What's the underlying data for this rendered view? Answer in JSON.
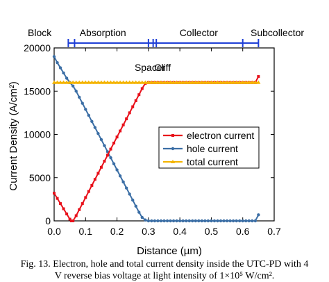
{
  "chart_data": {
    "type": "line",
    "xlabel": "Distance (µm)",
    "ylabel": "Current Density (A/cm²)",
    "xlim": [
      0.0,
      0.7
    ],
    "ylim": [
      0,
      20000
    ],
    "xticks": [
      "0.0",
      "0.1",
      "0.2",
      "0.3",
      "0.4",
      "0.5",
      "0.6",
      "0.7"
    ],
    "yticks": [
      "0",
      "5000",
      "10000",
      "15000",
      "20000"
    ],
    "grid": false,
    "legend_position": "center-right",
    "series": [
      {
        "name": "electron current",
        "color": "#e8101a",
        "marker": "square",
        "x": [
          0.0,
          0.01,
          0.02,
          0.03,
          0.04,
          0.05,
          0.055,
          0.06,
          0.07,
          0.08,
          0.09,
          0.1,
          0.11,
          0.12,
          0.13,
          0.14,
          0.15,
          0.16,
          0.17,
          0.18,
          0.19,
          0.2,
          0.21,
          0.22,
          0.23,
          0.24,
          0.25,
          0.26,
          0.27,
          0.28,
          0.29,
          0.3,
          0.31,
          0.32,
          0.33,
          0.34,
          0.35,
          0.36,
          0.37,
          0.38,
          0.39,
          0.4,
          0.41,
          0.42,
          0.43,
          0.44,
          0.45,
          0.46,
          0.47,
          0.48,
          0.49,
          0.5,
          0.51,
          0.52,
          0.53,
          0.54,
          0.55,
          0.56,
          0.57,
          0.58,
          0.59,
          0.6,
          0.61,
          0.62,
          0.63,
          0.64,
          0.65
        ],
        "y": [
          3200,
          2600,
          2000,
          1400,
          800,
          200,
          0,
          0,
          600,
          1300,
          2000,
          2700,
          3400,
          4100,
          4800,
          5500,
          6200,
          6900,
          7600,
          8300,
          9000,
          9700,
          10400,
          11100,
          11800,
          12500,
          13200,
          13900,
          14600,
          15300,
          15900,
          16000,
          16000,
          16000,
          16000,
          16000,
          16000,
          16000,
          16000,
          16000,
          16000,
          16000,
          16000,
          16000,
          16000,
          16000,
          16000,
          16000,
          16000,
          16000,
          16000,
          16000,
          16000,
          16000,
          16000,
          16000,
          16000,
          16000,
          16000,
          16000,
          16000,
          16000,
          16000,
          16000,
          16000,
          16000,
          16700
        ]
      },
      {
        "name": "hole current",
        "color": "#3b6ea5",
        "marker": "circle",
        "x": [
          0.0,
          0.01,
          0.02,
          0.03,
          0.04,
          0.05,
          0.06,
          0.07,
          0.08,
          0.09,
          0.1,
          0.11,
          0.12,
          0.13,
          0.14,
          0.15,
          0.16,
          0.17,
          0.18,
          0.19,
          0.2,
          0.21,
          0.22,
          0.23,
          0.24,
          0.25,
          0.26,
          0.27,
          0.28,
          0.29,
          0.3,
          0.31,
          0.32,
          0.33,
          0.34,
          0.35,
          0.36,
          0.37,
          0.38,
          0.39,
          0.4,
          0.41,
          0.42,
          0.43,
          0.44,
          0.45,
          0.46,
          0.47,
          0.48,
          0.49,
          0.5,
          0.51,
          0.52,
          0.53,
          0.54,
          0.55,
          0.56,
          0.57,
          0.58,
          0.59,
          0.6,
          0.61,
          0.62,
          0.63,
          0.64,
          0.65
        ],
        "y": [
          19000,
          18300,
          17700,
          17100,
          16500,
          16000,
          15600,
          15000,
          14300,
          13600,
          12900,
          12200,
          11500,
          10800,
          10100,
          9400,
          8700,
          8000,
          7300,
          6600,
          5900,
          5200,
          4500,
          3800,
          3100,
          2400,
          1700,
          1000,
          400,
          100,
          0,
          0,
          0,
          0,
          0,
          0,
          0,
          0,
          0,
          0,
          0,
          0,
          0,
          0,
          0,
          0,
          0,
          0,
          0,
          0,
          0,
          0,
          0,
          0,
          0,
          0,
          0,
          0,
          0,
          0,
          0,
          0,
          0,
          0,
          0,
          700
        ]
      },
      {
        "name": "total current",
        "color": "#f4b400",
        "marker": "triangle",
        "x": [
          0.0,
          0.01,
          0.02,
          0.03,
          0.04,
          0.05,
          0.06,
          0.07,
          0.08,
          0.09,
          0.1,
          0.11,
          0.12,
          0.13,
          0.14,
          0.15,
          0.16,
          0.17,
          0.18,
          0.19,
          0.2,
          0.21,
          0.22,
          0.23,
          0.24,
          0.25,
          0.26,
          0.27,
          0.28,
          0.29,
          0.3,
          0.31,
          0.32,
          0.33,
          0.34,
          0.35,
          0.36,
          0.37,
          0.38,
          0.39,
          0.4,
          0.41,
          0.42,
          0.43,
          0.44,
          0.45,
          0.46,
          0.47,
          0.48,
          0.49,
          0.5,
          0.51,
          0.52,
          0.53,
          0.54,
          0.55,
          0.56,
          0.57,
          0.58,
          0.59,
          0.6,
          0.61,
          0.62,
          0.63,
          0.64,
          0.65
        ],
        "y": [
          16000,
          16000,
          16000,
          16000,
          16000,
          16000,
          16000,
          16000,
          16000,
          16000,
          16000,
          16000,
          16000,
          16000,
          16000,
          16000,
          16000,
          16000,
          16000,
          16000,
          16000,
          16000,
          16000,
          16000,
          16000,
          16000,
          16000,
          16000,
          16000,
          16000,
          16000,
          16000,
          16000,
          16000,
          16000,
          16000,
          16000,
          16000,
          16000,
          16000,
          16000,
          16000,
          16000,
          16000,
          16000,
          16000,
          16000,
          16000,
          16000,
          16000,
          16000,
          16000,
          16000,
          16000,
          16000,
          16000,
          16000,
          16000,
          16000,
          16000,
          16000,
          16000,
          16000,
          16000,
          16000,
          16000
        ]
      }
    ],
    "regions": {
      "color": "#1f3fd6",
      "labels": [
        {
          "text": "Block",
          "x": 0.035,
          "row": "above"
        },
        {
          "text": "Absorption",
          "x": 0.155,
          "row": "above"
        },
        {
          "text": "Spacer",
          "x": 0.305,
          "row": "below"
        },
        {
          "text": "Cliff",
          "x": 0.345,
          "row": "below"
        },
        {
          "text": "Collector",
          "x": 0.46,
          "row": "above"
        },
        {
          "text": "Subcollector",
          "x": 0.71,
          "row": "above"
        }
      ],
      "boundaries": [
        0.045,
        0.065,
        0.3,
        0.315,
        0.325,
        0.6,
        0.65
      ]
    }
  },
  "caption": {
    "line1": "Fig. 13. Electron, hole and total current density inside the UTC-PD with 4",
    "line2": "V reverse bias voltage at light intensity of 1×10⁵ W/cm²."
  }
}
